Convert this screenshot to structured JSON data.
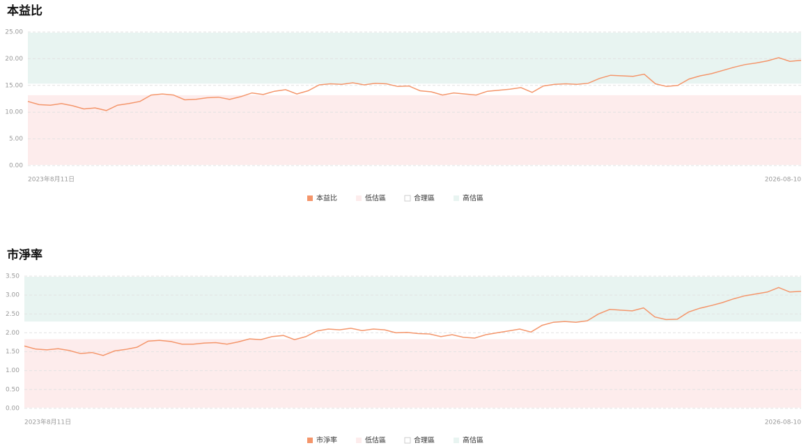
{
  "chart_data": [
    {
      "type": "line",
      "title": "本益比",
      "categories": [
        "2023年8月11日",
        null,
        null,
        null,
        null,
        null,
        null,
        null,
        null,
        null,
        null,
        null,
        null,
        null,
        null,
        null,
        null,
        null,
        null,
        null,
        null,
        null,
        null,
        null,
        null,
        null,
        null,
        null,
        null,
        null,
        null,
        null,
        null,
        null,
        null,
        null,
        null,
        null,
        null,
        null,
        null,
        null,
        null,
        null,
        null,
        null,
        null,
        null,
        null,
        null,
        null,
        null,
        null,
        null,
        null,
        null,
        null,
        null,
        null,
        null,
        null,
        null,
        null,
        null,
        null,
        null,
        null,
        null,
        null,
        "2026-08-10"
      ],
      "series": [
        {
          "name": "本益比",
          "color": "#f4956a",
          "values": [
            12.0,
            11.4,
            11.3,
            11.6,
            11.2,
            10.6,
            10.8,
            10.3,
            11.3,
            11.6,
            12.0,
            13.2,
            13.4,
            13.2,
            12.3,
            12.4,
            12.7,
            12.8,
            12.4,
            12.9,
            13.6,
            13.3,
            13.9,
            14.2,
            13.4,
            14.0,
            15.1,
            15.3,
            15.2,
            15.5,
            15.1,
            15.4,
            15.3,
            14.8,
            14.9,
            14.0,
            13.8,
            13.2,
            13.6,
            13.4,
            13.2,
            13.9,
            14.1,
            14.3,
            14.6,
            13.7,
            14.9,
            15.2,
            15.3,
            15.2,
            15.4,
            16.3,
            16.9,
            16.8,
            16.7,
            17.1,
            15.3,
            14.8,
            15.0,
            16.2,
            16.8,
            17.2,
            17.8,
            18.4,
            18.9,
            19.2,
            19.6,
            20.2,
            19.5,
            19.7
          ]
        }
      ],
      "bands": [
        {
          "name": "低估區",
          "color": "#fdecec",
          "range": [
            0,
            13.3
          ]
        },
        {
          "name": "合理區",
          "color": "#ffffff",
          "range": [
            13.3,
            15.2
          ]
        },
        {
          "name": "高估區",
          "color": "#e8f4f1",
          "range": [
            15.2,
            25
          ]
        }
      ],
      "ylim": [
        0,
        25
      ],
      "yticks": [
        {
          "value": 0,
          "label": "0.00"
        },
        {
          "value": 5,
          "label": "5.00"
        },
        {
          "value": 10,
          "label": "10.00"
        },
        {
          "value": 15,
          "label": "15.00"
        },
        {
          "value": 20,
          "label": "20.00"
        },
        {
          "value": 25,
          "label": "25.00"
        }
      ],
      "grid": true
    },
    {
      "type": "line",
      "title": "市淨率",
      "categories": [
        "2023年8月11日",
        null,
        null,
        null,
        null,
        null,
        null,
        null,
        null,
        null,
        null,
        null,
        null,
        null,
        null,
        null,
        null,
        null,
        null,
        null,
        null,
        null,
        null,
        null,
        null,
        null,
        null,
        null,
        null,
        null,
        null,
        null,
        null,
        null,
        null,
        null,
        null,
        null,
        null,
        null,
        null,
        null,
        null,
        null,
        null,
        null,
        null,
        null,
        null,
        null,
        null,
        null,
        null,
        null,
        null,
        null,
        null,
        null,
        null,
        null,
        null,
        null,
        null,
        null,
        null,
        null,
        null,
        null,
        null,
        "2026-08-10"
      ],
      "series": [
        {
          "name": "市淨率",
          "color": "#f4956a",
          "values": [
            1.65,
            1.57,
            1.55,
            1.58,
            1.53,
            1.45,
            1.48,
            1.4,
            1.52,
            1.56,
            1.62,
            1.78,
            1.8,
            1.77,
            1.7,
            1.7,
            1.73,
            1.74,
            1.7,
            1.76,
            1.84,
            1.82,
            1.9,
            1.93,
            1.82,
            1.9,
            2.05,
            2.1,
            2.08,
            2.12,
            2.06,
            2.1,
            2.08,
            2.0,
            2.01,
            1.98,
            1.97,
            1.9,
            1.95,
            1.88,
            1.86,
            1.95,
            2.0,
            2.05,
            2.1,
            2.02,
            2.2,
            2.28,
            2.3,
            2.28,
            2.32,
            2.5,
            2.62,
            2.6,
            2.58,
            2.66,
            2.42,
            2.35,
            2.36,
            2.55,
            2.65,
            2.72,
            2.8,
            2.9,
            2.98,
            3.03,
            3.08,
            3.2,
            3.08,
            3.1
          ]
        }
      ],
      "bands": [
        {
          "name": "低估區",
          "color": "#fdecec",
          "range": [
            0,
            1.85
          ]
        },
        {
          "name": "合理區",
          "color": "#ffffff",
          "range": [
            1.85,
            2.28
          ]
        },
        {
          "name": "高估區",
          "color": "#e8f4f1",
          "range": [
            2.28,
            3.5
          ]
        }
      ],
      "ylim": [
        0,
        3.5
      ],
      "yticks": [
        {
          "value": 0,
          "label": "0.00"
        },
        {
          "value": 0.5,
          "label": "0.50"
        },
        {
          "value": 1,
          "label": "1.00"
        },
        {
          "value": 1.5,
          "label": "1.50"
        },
        {
          "value": 2,
          "label": "2.00"
        },
        {
          "value": 2.5,
          "label": "2.50"
        },
        {
          "value": 3,
          "label": "3.00"
        },
        {
          "value": 3.5,
          "label": "3.50"
        }
      ],
      "grid": true
    }
  ]
}
